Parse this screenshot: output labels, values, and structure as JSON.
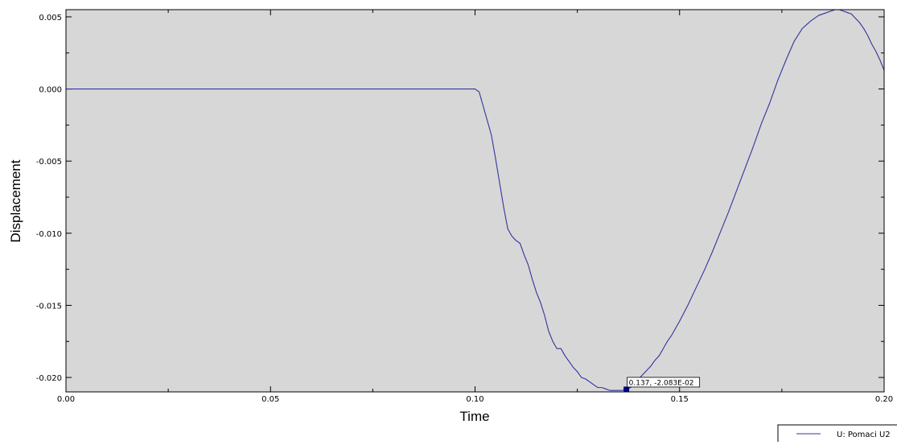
{
  "chart_data": {
    "type": "line",
    "title": "",
    "xlabel": "Time",
    "ylabel": "Displacement",
    "xlim": [
      0.0,
      0.2
    ],
    "ylim": [
      -0.021,
      0.0055
    ],
    "x_ticks": [
      0.0,
      0.05,
      0.1,
      0.15,
      0.2
    ],
    "x_tick_labels": [
      "0.00",
      "0.05",
      "0.10",
      "0.15",
      "0.20"
    ],
    "y_ticks": [
      0.005,
      0.0,
      -0.005,
      -0.01,
      -0.015,
      -0.02
    ],
    "y_tick_labels": [
      "0.005",
      "0.000",
      "-0.005",
      "-0.010",
      "-0.015",
      "-0.020"
    ],
    "grid": false,
    "background_color": "#d7d7d7",
    "line_color": "#3333a0",
    "legend_position": "bottom-right",
    "series": [
      {
        "name": "U: Pomaci U2",
        "x": [
          0.0,
          0.05,
          0.1,
          0.101,
          0.102,
          0.103,
          0.104,
          0.105,
          0.106,
          0.107,
          0.108,
          0.109,
          0.11,
          0.111,
          0.112,
          0.113,
          0.114,
          0.115,
          0.116,
          0.117,
          0.118,
          0.119,
          0.12,
          0.121,
          0.122,
          0.123,
          0.124,
          0.125,
          0.126,
          0.127,
          0.128,
          0.129,
          0.13,
          0.131,
          0.132,
          0.133,
          0.134,
          0.135,
          0.136,
          0.137,
          0.138,
          0.139,
          0.14,
          0.141,
          0.142,
          0.143,
          0.144,
          0.145,
          0.146,
          0.147,
          0.148,
          0.149,
          0.15,
          0.152,
          0.154,
          0.156,
          0.158,
          0.16,
          0.162,
          0.164,
          0.166,
          0.168,
          0.17,
          0.172,
          0.174,
          0.176,
          0.178,
          0.18,
          0.182,
          0.184,
          0.186,
          0.187,
          0.188,
          0.189,
          0.19,
          0.191,
          0.192,
          0.193,
          0.194,
          0.195,
          0.196,
          0.197,
          0.198,
          0.199,
          0.2
        ],
        "y": [
          0.0,
          0.0,
          0.0,
          -0.0002,
          -0.0012,
          -0.0022,
          -0.0032,
          -0.0048,
          -0.0065,
          -0.0082,
          -0.0097,
          -0.0102,
          -0.0105,
          -0.0107,
          -0.0115,
          -0.0122,
          -0.0132,
          -0.0141,
          -0.0148,
          -0.0157,
          -0.0168,
          -0.0175,
          -0.018,
          -0.018,
          -0.0185,
          -0.0189,
          -0.0193,
          -0.0196,
          -0.02,
          -0.0201,
          -0.0203,
          -0.0205,
          -0.0207,
          -0.0207,
          -0.0208,
          -0.0209,
          -0.0209,
          -0.0209,
          -0.0209,
          -0.0208,
          -0.0207,
          -0.0205,
          -0.0201,
          -0.0198,
          -0.0195,
          -0.0192,
          -0.0188,
          -0.0185,
          -0.018,
          -0.0175,
          -0.0171,
          -0.0166,
          -0.0161,
          -0.015,
          -0.0138,
          -0.0126,
          -0.0113,
          -0.0099,
          -0.0085,
          -0.007,
          -0.0055,
          -0.004,
          -0.0024,
          -0.001,
          0.0006,
          0.002,
          0.0033,
          0.0042,
          0.0047,
          0.0051,
          0.0053,
          0.0054,
          0.0055,
          0.0055,
          0.0054,
          0.0053,
          0.0052,
          0.0049,
          0.0046,
          0.0042,
          0.0037,
          0.0031,
          0.0026,
          0.002,
          0.0013
        ]
      }
    ],
    "probe": {
      "x": 0.137,
      "y": -0.02083,
      "label": "0.137, -2.083E-02"
    }
  }
}
